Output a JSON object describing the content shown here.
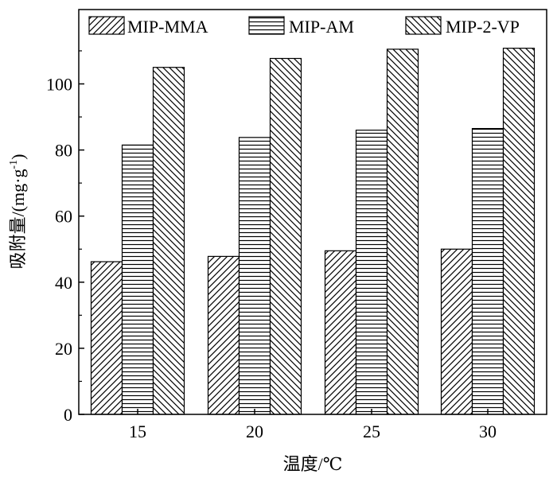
{
  "chart_data": {
    "type": "bar",
    "categories": [
      "15",
      "20",
      "25",
      "30"
    ],
    "series": [
      {
        "name": "MIP-MMA",
        "values": [
          46.2,
          47.8,
          49.5,
          50.0
        ],
        "pattern": "diagonal-up"
      },
      {
        "name": "MIP-AM",
        "values": [
          81.5,
          83.8,
          86.0,
          86.5
        ],
        "pattern": "horizontal"
      },
      {
        "name": "MIP-2-VP",
        "values": [
          105.0,
          107.7,
          110.5,
          110.8
        ],
        "pattern": "diagonal-down"
      }
    ],
    "xlabel": "温度/℃",
    "ylabel": "吸附量/(mg·g",
    "ylabel_superscript": "-1",
    "ylabel_close": ")",
    "ylim": [
      0,
      122.5
    ],
    "yticks": [
      0,
      20,
      40,
      60,
      80,
      100
    ],
    "grid": false,
    "legend_position": "top"
  }
}
